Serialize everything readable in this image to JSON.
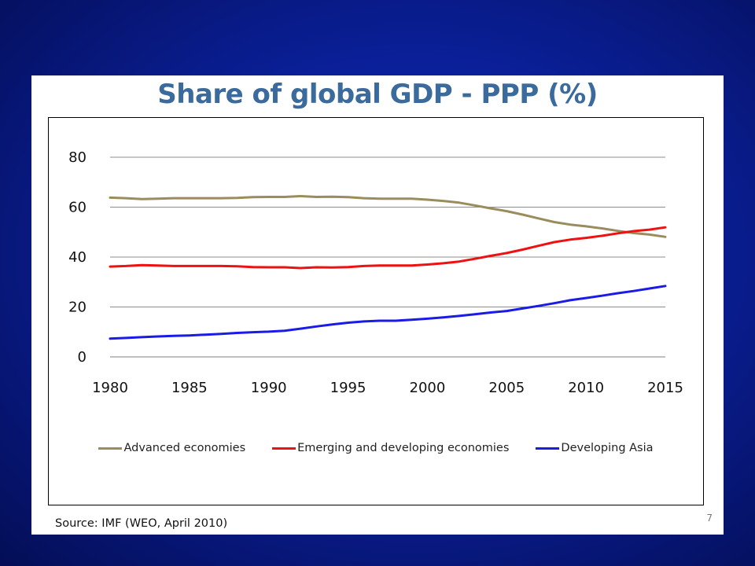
{
  "slide": {
    "title": "Share of global GDP - PPP (%)",
    "source": "Source: IMF (WEO, April 2010)",
    "page_number": "7"
  },
  "chart_data": {
    "type": "line",
    "title": "Share of global GDP - PPP (%)",
    "xlabel": "",
    "ylabel": "",
    "xlim": [
      1980,
      2015
    ],
    "ylim": [
      0,
      80
    ],
    "x_ticks": [
      "1980",
      "1985",
      "1990",
      "1995",
      "2000",
      "2005",
      "2010",
      "2015"
    ],
    "y_ticks": [
      "0",
      "20",
      "40",
      "60",
      "80"
    ],
    "grid": "horizontal",
    "legend_position": "bottom",
    "x": [
      1980,
      1981,
      1982,
      1983,
      1984,
      1985,
      1986,
      1987,
      1988,
      1989,
      1990,
      1991,
      1992,
      1993,
      1994,
      1995,
      1996,
      1997,
      1998,
      1999,
      2000,
      2001,
      2002,
      2003,
      2004,
      2005,
      2006,
      2007,
      2008,
      2009,
      2010,
      2011,
      2012,
      2013,
      2014,
      2015
    ],
    "series": [
      {
        "name": "Advanced economies",
        "color": "#9b8c5e",
        "values": [
          63.8,
          63.6,
          63.2,
          63.4,
          63.6,
          63.6,
          63.6,
          63.6,
          63.7,
          64.0,
          64.1,
          64.1,
          64.4,
          64.1,
          64.2,
          64.0,
          63.6,
          63.4,
          63.4,
          63.4,
          63.0,
          62.5,
          61.8,
          60.7,
          59.5,
          58.4,
          57.0,
          55.5,
          54.0,
          53.0,
          52.3,
          51.5,
          50.5,
          49.6,
          49.0,
          48.1
        ]
      },
      {
        "name": "Emerging and developing economies",
        "color": "#ee1111",
        "values": [
          36.2,
          36.4,
          36.8,
          36.6,
          36.4,
          36.4,
          36.4,
          36.4,
          36.3,
          36.0,
          35.9,
          35.9,
          35.6,
          35.9,
          35.8,
          36.0,
          36.4,
          36.6,
          36.6,
          36.6,
          37.0,
          37.5,
          38.2,
          39.3,
          40.5,
          41.6,
          43.0,
          44.5,
          46.0,
          47.0,
          47.7,
          48.5,
          49.5,
          50.4,
          51.0,
          51.9
        ]
      },
      {
        "name": "Developing Asia",
        "color": "#1b1be8",
        "values": [
          7.3,
          7.6,
          7.9,
          8.2,
          8.4,
          8.6,
          8.9,
          9.2,
          9.6,
          9.9,
          10.1,
          10.5,
          11.3,
          12.2,
          13.0,
          13.7,
          14.2,
          14.5,
          14.5,
          14.9,
          15.3,
          15.8,
          16.4,
          17.1,
          17.8,
          18.4,
          19.4,
          20.4,
          21.5,
          22.7,
          23.6,
          24.5,
          25.5,
          26.4,
          27.4,
          28.4
        ]
      }
    ]
  }
}
